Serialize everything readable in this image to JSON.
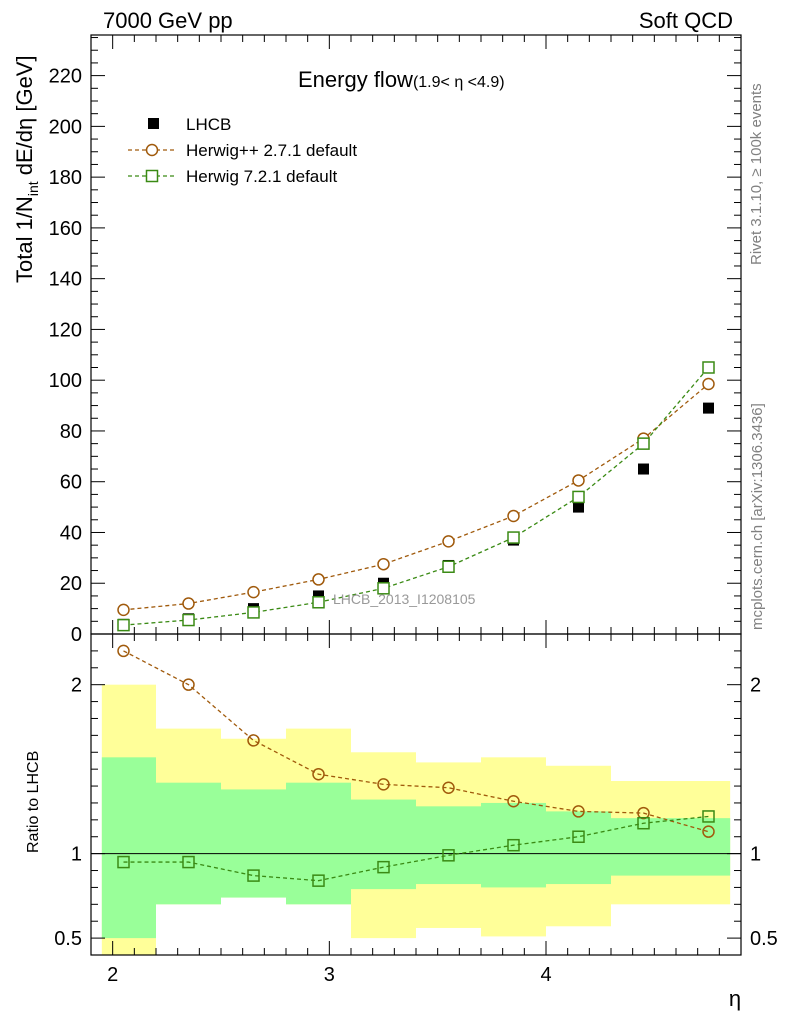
{
  "header": {
    "left": "7000 GeV pp",
    "right": "Soft QCD"
  },
  "side_text": {
    "upper": "Rivet 3.1.10, ≥ 100k events",
    "lower": "mcplots.cern.ch [arXiv:1306.3436]"
  },
  "chart_data": [
    {
      "type": "scatter",
      "title": "Energy flow",
      "title_sub": "(1.9< η <4.9)",
      "xlabel": "η",
      "ylabel": "Total 1/N_int dE/dη [GeV]",
      "ylabel_main": "Total 1/N",
      "ylabel_sub": "int",
      "ylabel_tail": " dE/dη [GeV]",
      "watermark": "LHCB_2013_I1208105",
      "xlim": [
        1.9,
        4.9
      ],
      "ylim": [
        0,
        236
      ],
      "y_ticks": [
        0,
        20,
        40,
        60,
        80,
        100,
        120,
        140,
        160,
        180,
        200,
        220
      ],
      "legend_position": "top-left",
      "x": [
        2.05,
        2.35,
        2.65,
        2.95,
        3.25,
        3.55,
        3.85,
        4.15,
        4.45,
        4.75
      ],
      "series": [
        {
          "name": "LHCB",
          "color": "#000000",
          "marker": "filled-square",
          "values": [
            3.8,
            6.0,
            10.0,
            15.0,
            20.0,
            27.0,
            37.0,
            50.0,
            65.0,
            89.0
          ]
        },
        {
          "name": "Herwig++ 2.7.1 default",
          "color": "#a05a0c",
          "marker": "open-circle",
          "values": [
            9.5,
            12.0,
            16.5,
            21.5,
            27.5,
            36.5,
            46.5,
            60.5,
            77.0,
            98.5
          ]
        },
        {
          "name": "Herwig 7.2.1 default",
          "color": "#3a8a14",
          "marker": "open-square",
          "values": [
            3.5,
            5.5,
            8.5,
            12.5,
            18.0,
            26.5,
            38.0,
            54.0,
            75.0,
            105.0
          ]
        }
      ]
    },
    {
      "type": "line",
      "ylabel": "Ratio to LHCB",
      "xlabel": "η",
      "xlim": [
        1.9,
        4.9
      ],
      "ylim": [
        0.4,
        2.3
      ],
      "x_ticks": [
        2,
        3,
        4
      ],
      "y_ticks": [
        0.5,
        1,
        2
      ],
      "y_tick_labels": [
        "0.5",
        "1",
        "2"
      ],
      "reference_line": 1,
      "bands": {
        "bin_edges": [
          1.9,
          2.2,
          2.5,
          2.8,
          3.1,
          3.4,
          3.7,
          4.0,
          4.3,
          4.6,
          4.9
        ],
        "yellow": {
          "color": "#ffff99",
          "low": [
            0.4,
            0.7,
            0.74,
            0.7,
            0.5,
            0.56,
            0.51,
            0.57,
            0.7,
            0.7
          ],
          "high": [
            2.0,
            1.74,
            1.68,
            1.74,
            1.6,
            1.54,
            1.57,
            1.52,
            1.43,
            1.43
          ]
        },
        "green": {
          "color": "#99ff99",
          "low": [
            0.5,
            0.7,
            0.74,
            0.7,
            0.79,
            0.82,
            0.8,
            0.82,
            0.87,
            0.87
          ],
          "high": [
            1.57,
            1.42,
            1.38,
            1.42,
            1.32,
            1.28,
            1.3,
            1.25,
            1.21,
            1.21
          ]
        }
      },
      "series": [
        {
          "name": "Herwig++ 2.7.1 default",
          "color": "#a05a0c",
          "marker": "open-circle",
          "values": [
            2.2,
            2.0,
            1.67,
            1.47,
            1.41,
            1.39,
            1.31,
            1.25,
            1.24,
            1.13
          ]
        },
        {
          "name": "Herwig 7.2.1 default",
          "color": "#3a8a14",
          "marker": "open-square",
          "values": [
            0.95,
            0.95,
            0.87,
            0.84,
            0.92,
            0.99,
            1.05,
            1.1,
            1.18,
            1.22
          ]
        }
      ]
    }
  ]
}
